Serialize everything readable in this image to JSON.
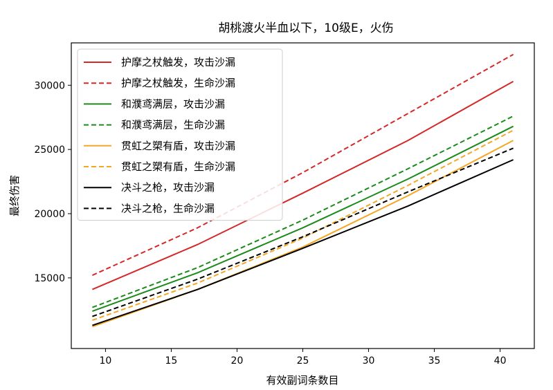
{
  "chart_data": {
    "type": "line",
    "title": "胡桃渡火半血以下，10级E，火伤",
    "xlabel": "有效副词条数目",
    "ylabel": "最终伤害",
    "xlim": [
      7.4,
      42.6
    ],
    "ylim": [
      9500,
      33300
    ],
    "xticks": [
      10,
      15,
      20,
      25,
      30,
      35,
      40
    ],
    "yticks": [
      15000,
      20000,
      25000,
      30000
    ],
    "grid": false,
    "legend_position": "top-left",
    "series": [
      {
        "name": "护摩之杖触发，攻击沙漏",
        "color": "#d62728",
        "dashed": false,
        "x": [
          9,
          17,
          25,
          33,
          41
        ],
        "y": [
          14100,
          17600,
          21600,
          25700,
          30300
        ]
      },
      {
        "name": "护摩之杖触发，生命沙漏",
        "color": "#d62728",
        "dashed": true,
        "x": [
          9,
          17,
          25,
          33,
          41
        ],
        "y": [
          15200,
          18900,
          23200,
          27800,
          32400
        ]
      },
      {
        "name": "和濮鸢满层，攻击沙漏",
        "color": "#1a8a1a",
        "dashed": false,
        "x": [
          9,
          17,
          25,
          33,
          41
        ],
        "y": [
          12400,
          15400,
          18900,
          22700,
          26800
        ]
      },
      {
        "name": "和濮鸢满层，生命沙漏",
        "color": "#1a8a1a",
        "dashed": true,
        "x": [
          9,
          17,
          25,
          33,
          41
        ],
        "y": [
          12700,
          15800,
          19500,
          23500,
          27600
        ]
      },
      {
        "name": "贯虹之槊有盾，攻击沙漏",
        "color": "#f5a623",
        "dashed": false,
        "x": [
          9,
          17,
          25,
          33,
          41
        ],
        "y": [
          11200,
          14100,
          17400,
          21400,
          25700
        ]
      },
      {
        "name": "贯虹之槊有盾，生命沙漏",
        "color": "#f5a623",
        "dashed": true,
        "x": [
          9,
          17,
          25,
          33,
          41
        ],
        "y": [
          11700,
          14600,
          18100,
          22200,
          26500
        ]
      },
      {
        "name": "决斗之枪，攻击沙漏",
        "color": "#000000",
        "dashed": false,
        "x": [
          9,
          17,
          25,
          33,
          41
        ],
        "y": [
          11300,
          14100,
          17300,
          20600,
          24200
        ]
      },
      {
        "name": "决斗之枪，生命沙漏",
        "color": "#000000",
        "dashed": true,
        "x": [
          9,
          17,
          25,
          33,
          41
        ],
        "y": [
          12000,
          14900,
          18200,
          21700,
          25100
        ]
      }
    ]
  }
}
